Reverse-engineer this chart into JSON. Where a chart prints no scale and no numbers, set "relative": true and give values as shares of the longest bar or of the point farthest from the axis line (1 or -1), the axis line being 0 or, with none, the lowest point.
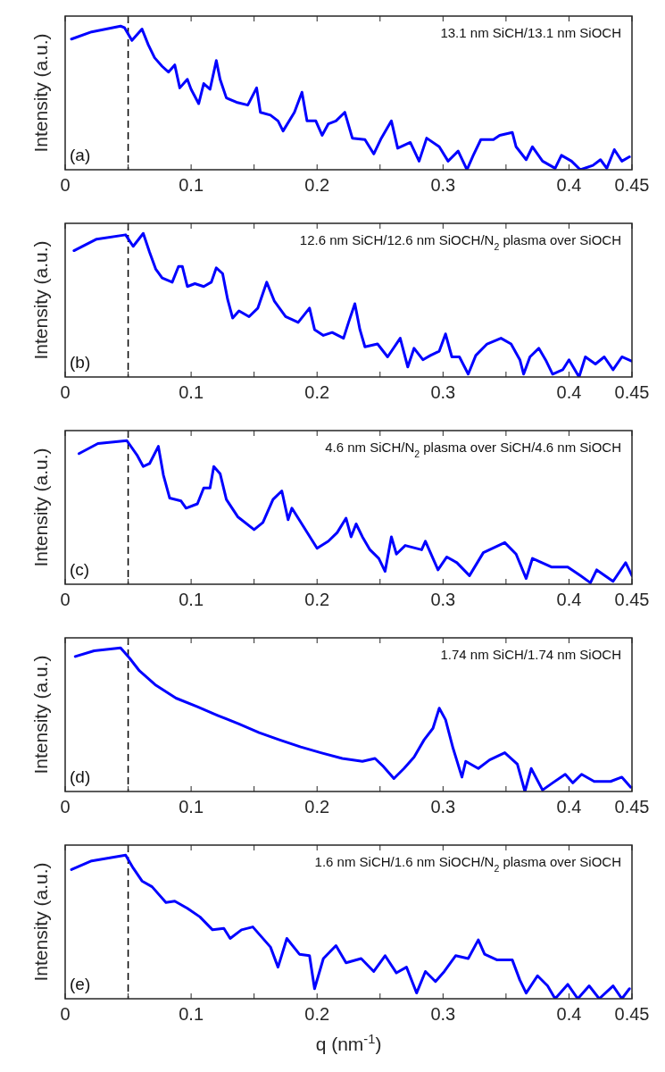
{
  "chart_data": [
    {
      "type": "line",
      "title": "13.1 nm SiCH/13.1 nm SiOCH",
      "ylabel": "Intensity (a.u.)",
      "relative": true,
      "xlim": [
        0,
        0.45
      ],
      "xticks": [
        0,
        {
          "value": 0.05,
          "label": null
        },
        0.1,
        {
          "value": 0.15,
          "label": null
        },
        0.2,
        {
          "value": 0.25,
          "label": null
        },
        0.3,
        {
          "value": 0.35,
          "label": null
        },
        0.4,
        0.45
      ],
      "annotations": [
        "(a)"
      ],
      "ref_lines": [
        {
          "axis": "x",
          "value": 0.05,
          "color": "#000000",
          "line_style": "dashed"
        }
      ],
      "line_style": "solid",
      "x": [
        0.005,
        0.021,
        0.044,
        0.047,
        0.053,
        0.061,
        0.066,
        0.071,
        0.077,
        0.082,
        0.087,
        0.091,
        0.097,
        0.1,
        0.106,
        0.11,
        0.115,
        0.12,
        0.123,
        0.128,
        0.136,
        0.145,
        0.152,
        0.155,
        0.163,
        0.169,
        0.173,
        0.182,
        0.188,
        0.192,
        0.199,
        0.204,
        0.209,
        0.215,
        0.222,
        0.228,
        0.238,
        0.245,
        0.251,
        0.259,
        0.264,
        0.274,
        0.281,
        0.287,
        0.297,
        0.304,
        0.312,
        0.319,
        0.324,
        0.33,
        0.34,
        0.345,
        0.355,
        0.358,
        0.366,
        0.371,
        0.379,
        0.389,
        0.394,
        0.402,
        0.409,
        0.419,
        0.425,
        0.43,
        0.436,
        0.442,
        0.448
      ],
      "series": [
        {
          "color": "#0000ff",
          "values": [
            0.91,
            0.96,
            1.0,
            0.99,
            0.9,
            0.98,
            0.87,
            0.78,
            0.72,
            0.68,
            0.73,
            0.57,
            0.63,
            0.56,
            0.46,
            0.6,
            0.56,
            0.76,
            0.63,
            0.5,
            0.47,
            0.45,
            0.57,
            0.4,
            0.38,
            0.34,
            0.27,
            0.4,
            0.54,
            0.34,
            0.34,
            0.24,
            0.32,
            0.34,
            0.4,
            0.22,
            0.21,
            0.11,
            0.22,
            0.34,
            0.15,
            0.19,
            0.06,
            0.22,
            0.16,
            0.06,
            0.13,
            0.0,
            0.1,
            0.21,
            0.21,
            0.24,
            0.26,
            0.16,
            0.07,
            0.16,
            0.06,
            0.01,
            0.1,
            0.06,
            0.0,
            0.03,
            0.07,
            0.01,
            0.14,
            0.06,
            0.09
          ]
        }
      ]
    },
    {
      "type": "line",
      "title": "12.6 nm SiCH/12.6 nm SiOCH/N$_{2}$ plasma over SiOCH",
      "ylabel": "Intensity (a.u.)",
      "relative": true,
      "xlim": [
        0,
        0.45
      ],
      "xticks": [
        0,
        {
          "value": 0.05,
          "label": null
        },
        0.1,
        {
          "value": 0.15,
          "label": null
        },
        0.2,
        {
          "value": 0.25,
          "label": null
        },
        0.3,
        {
          "value": 0.35,
          "label": null
        },
        0.4,
        0.45
      ],
      "annotations": [
        "(b)"
      ],
      "ref_lines": [
        {
          "axis": "x",
          "value": 0.05,
          "color": "#000000",
          "line_style": "dashed"
        }
      ],
      "line_style": "solid",
      "x": [
        0.007,
        0.025,
        0.048,
        0.054,
        0.062,
        0.067,
        0.072,
        0.077,
        0.085,
        0.09,
        0.093,
        0.097,
        0.103,
        0.11,
        0.116,
        0.12,
        0.125,
        0.129,
        0.133,
        0.138,
        0.146,
        0.153,
        0.16,
        0.166,
        0.175,
        0.185,
        0.194,
        0.198,
        0.205,
        0.212,
        0.221,
        0.225,
        0.23,
        0.234,
        0.238,
        0.248,
        0.256,
        0.266,
        0.272,
        0.277,
        0.284,
        0.29,
        0.297,
        0.302,
        0.307,
        0.313,
        0.32,
        0.326,
        0.335,
        0.346,
        0.354,
        0.361,
        0.364,
        0.369,
        0.376,
        0.382,
        0.387,
        0.395,
        0.4,
        0.408,
        0.413,
        0.421,
        0.428,
        0.435,
        0.442,
        0.45
      ],
      "series": [
        {
          "color": "#0000ff",
          "values": [
            0.88,
            0.96,
            0.99,
            0.91,
            1.0,
            0.87,
            0.75,
            0.69,
            0.66,
            0.77,
            0.77,
            0.63,
            0.65,
            0.63,
            0.66,
            0.76,
            0.72,
            0.54,
            0.41,
            0.46,
            0.42,
            0.48,
            0.66,
            0.53,
            0.42,
            0.38,
            0.48,
            0.33,
            0.29,
            0.31,
            0.27,
            0.38,
            0.51,
            0.33,
            0.21,
            0.23,
            0.14,
            0.27,
            0.07,
            0.2,
            0.12,
            0.15,
            0.18,
            0.3,
            0.14,
            0.14,
            0.02,
            0.15,
            0.23,
            0.27,
            0.23,
            0.12,
            0.02,
            0.14,
            0.2,
            0.11,
            0.02,
            0.05,
            0.12,
            0.0,
            0.14,
            0.09,
            0.14,
            0.05,
            0.14,
            0.11
          ]
        }
      ]
    },
    {
      "type": "line",
      "title": "4.6 nm SiCH/N$_{2}$ plasma over SiCH/4.6 nm SiOCH",
      "ylabel": "Intensity (a.u.)",
      "relative": true,
      "xlim": [
        0,
        0.45
      ],
      "xticks": [
        0,
        {
          "value": 0.05,
          "label": null
        },
        0.1,
        {
          "value": 0.15,
          "label": null
        },
        0.2,
        {
          "value": 0.25,
          "label": null
        },
        0.3,
        {
          "value": 0.35,
          "label": null
        },
        0.4,
        0.45
      ],
      "annotations": [
        "(c)"
      ],
      "ref_lines": [
        {
          "axis": "x",
          "value": 0.05,
          "color": "#000000",
          "line_style": "dashed"
        }
      ],
      "line_style": "solid",
      "x": [
        0.011,
        0.026,
        0.049,
        0.057,
        0.062,
        0.067,
        0.074,
        0.078,
        0.083,
        0.092,
        0.096,
        0.105,
        0.11,
        0.115,
        0.118,
        0.123,
        0.128,
        0.137,
        0.15,
        0.157,
        0.165,
        0.172,
        0.177,
        0.18,
        0.19,
        0.2,
        0.209,
        0.216,
        0.223,
        0.227,
        0.231,
        0.236,
        0.242,
        0.249,
        0.254,
        0.259,
        0.263,
        0.27,
        0.283,
        0.286,
        0.296,
        0.303,
        0.311,
        0.321,
        0.332,
        0.349,
        0.358,
        0.366,
        0.371,
        0.386,
        0.399,
        0.409,
        0.417,
        0.422,
        0.435,
        0.445,
        0.45
      ],
      "series": [
        {
          "color": "#0000ff",
          "values": [
            0.91,
            0.98,
            1.0,
            0.9,
            0.82,
            0.84,
            0.96,
            0.76,
            0.6,
            0.58,
            0.53,
            0.56,
            0.67,
            0.67,
            0.82,
            0.77,
            0.59,
            0.47,
            0.38,
            0.43,
            0.59,
            0.65,
            0.45,
            0.53,
            0.39,
            0.25,
            0.3,
            0.36,
            0.46,
            0.33,
            0.42,
            0.33,
            0.24,
            0.18,
            0.09,
            0.33,
            0.21,
            0.27,
            0.24,
            0.3,
            0.1,
            0.19,
            0.15,
            0.06,
            0.22,
            0.29,
            0.21,
            0.04,
            0.18,
            0.12,
            0.12,
            0.06,
            0.01,
            0.1,
            0.02,
            0.15,
            0.06
          ]
        }
      ]
    },
    {
      "type": "line",
      "title": "1.74 nm SiCH/1.74 nm SiOCH",
      "ylabel": "Intensity (a.u.)",
      "relative": true,
      "xlim": [
        0,
        0.45
      ],
      "xticks": [
        0,
        {
          "value": 0.05,
          "label": null
        },
        0.1,
        {
          "value": 0.15,
          "label": null
        },
        0.2,
        {
          "value": 0.25,
          "label": null
        },
        0.3,
        {
          "value": 0.35,
          "label": null
        },
        0.4,
        0.45
      ],
      "annotations": [
        "(d)"
      ],
      "ref_lines": [
        {
          "axis": "x",
          "value": 0.05,
          "color": "#000000",
          "line_style": "dashed"
        }
      ],
      "line_style": "solid",
      "x": [
        0.008,
        0.023,
        0.044,
        0.051,
        0.059,
        0.072,
        0.088,
        0.105,
        0.121,
        0.138,
        0.154,
        0.17,
        0.187,
        0.203,
        0.22,
        0.236,
        0.246,
        0.252,
        0.261,
        0.269,
        0.277,
        0.285,
        0.292,
        0.297,
        0.302,
        0.308,
        0.315,
        0.318,
        0.328,
        0.337,
        0.349,
        0.359,
        0.365,
        0.37,
        0.379,
        0.387,
        0.397,
        0.403,
        0.41,
        0.42,
        0.433,
        0.442,
        0.449
      ],
      "series": [
        {
          "color": "#0000ff",
          "values": [
            0.94,
            0.98,
            1.0,
            0.93,
            0.84,
            0.74,
            0.65,
            0.59,
            0.53,
            0.47,
            0.41,
            0.36,
            0.31,
            0.27,
            0.23,
            0.21,
            0.23,
            0.18,
            0.09,
            0.16,
            0.24,
            0.36,
            0.44,
            0.58,
            0.5,
            0.3,
            0.1,
            0.21,
            0.16,
            0.22,
            0.27,
            0.19,
            0.0,
            0.16,
            0.01,
            0.06,
            0.12,
            0.06,
            0.12,
            0.07,
            0.07,
            0.1,
            0.03
          ]
        }
      ]
    },
    {
      "type": "line",
      "title": "1.6 nm SiCH/1.6 nm SiOCH/N$_{2}$ plasma over SiOCH",
      "ylabel": "Intensity (a.u.)",
      "xlabel": "q (nm$^{-1}$)",
      "relative": true,
      "xlim": [
        0,
        0.45
      ],
      "xticks": [
        0,
        {
          "value": 0.05,
          "label": null
        },
        0.1,
        {
          "value": 0.15,
          "label": null
        },
        0.2,
        {
          "value": 0.25,
          "label": null
        },
        0.3,
        {
          "value": 0.35,
          "label": null
        },
        0.4,
        0.45
      ],
      "annotations": [
        "(e)"
      ],
      "ref_lines": [
        {
          "axis": "x",
          "value": 0.05,
          "color": "#000000",
          "line_style": "dashed"
        }
      ],
      "line_style": "solid",
      "x": [
        0.005,
        0.021,
        0.048,
        0.054,
        0.061,
        0.069,
        0.08,
        0.087,
        0.097,
        0.107,
        0.117,
        0.126,
        0.131,
        0.14,
        0.149,
        0.156,
        0.163,
        0.169,
        0.176,
        0.186,
        0.194,
        0.198,
        0.205,
        0.215,
        0.223,
        0.235,
        0.245,
        0.254,
        0.263,
        0.271,
        0.279,
        0.286,
        0.294,
        0.301,
        0.31,
        0.32,
        0.328,
        0.333,
        0.343,
        0.355,
        0.361,
        0.366,
        0.375,
        0.383,
        0.389,
        0.399,
        0.407,
        0.416,
        0.424,
        0.435,
        0.442,
        0.448
      ],
      "series": [
        {
          "color": "#0000ff",
          "values": [
            0.9,
            0.96,
            1.0,
            0.91,
            0.82,
            0.78,
            0.67,
            0.68,
            0.63,
            0.57,
            0.48,
            0.49,
            0.42,
            0.48,
            0.5,
            0.43,
            0.36,
            0.22,
            0.42,
            0.31,
            0.3,
            0.07,
            0.28,
            0.37,
            0.25,
            0.28,
            0.19,
            0.3,
            0.18,
            0.22,
            0.04,
            0.19,
            0.12,
            0.19,
            0.3,
            0.28,
            0.41,
            0.31,
            0.27,
            0.27,
            0.13,
            0.04,
            0.16,
            0.09,
            0.0,
            0.1,
            0.0,
            0.09,
            0.0,
            0.09,
            0.0,
            0.07
          ]
        }
      ]
    }
  ]
}
